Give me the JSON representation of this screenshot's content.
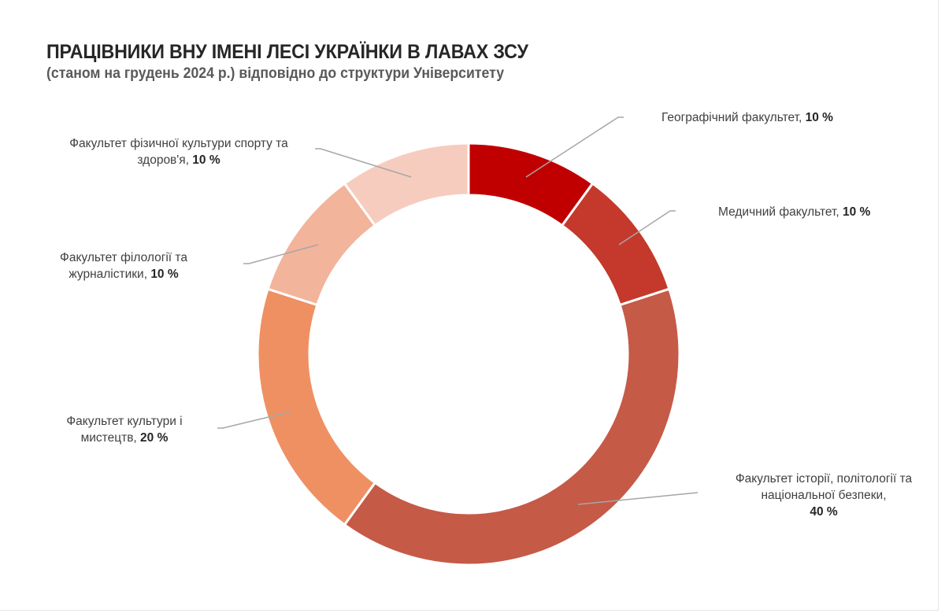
{
  "title": "ПРАЦІВНИКИ ВНУ ІМЕНІ ЛЕСІ УКРАЇНКИ В ЛАВАХ ЗСУ",
  "subtitle": "(станом на грудень 2024 р.) відповідно до структури Університету",
  "labels": [
    {
      "line1": "Географічний факультет, ",
      "line2": "",
      "pct": "10 %"
    },
    {
      "line1": "Медичний факультет, ",
      "line2": "",
      "pct": "10 %"
    },
    {
      "line1": "Факультет історії, політології та",
      "line2": "національної безпеки,",
      "pct": "40 %"
    },
    {
      "line1": "Факультет культури і",
      "line2": "мистецтв, ",
      "pct": "20 %"
    },
    {
      "line1": "Факультет філології та",
      "line2": "журналістики, ",
      "pct": "10 %"
    },
    {
      "line1": "Факультет фізичної культури спорту та",
      "line2": "здоров'я, ",
      "pct": "10 %"
    }
  ],
  "chart_data": {
    "type": "pie",
    "variant": "donut",
    "title": "ПРАЦІВНИКИ ВНУ ІМЕНІ ЛЕСІ УКРАЇНКИ В ЛАВАХ ЗСУ",
    "subtitle": "(станом на грудень 2024 р.) відповідно до структури Університету",
    "categories": [
      "Географічний факультет",
      "Медичний факультет",
      "Факультет історії, політології та національної безпеки",
      "Факультет культури і мистецтв",
      "Факультет філології та журналістики",
      "Факультет фізичної культури спорту та здоров'я"
    ],
    "values": [
      10,
      10,
      40,
      20,
      10,
      10
    ],
    "unit": "%",
    "colors": [
      "#C00000",
      "#C4392B",
      "#C55A47",
      "#EF9063",
      "#F2B49B",
      "#F6CCBE"
    ],
    "start_angle": "12 o'clock, clockwise",
    "legend": "none (data labels with leader lines)"
  }
}
